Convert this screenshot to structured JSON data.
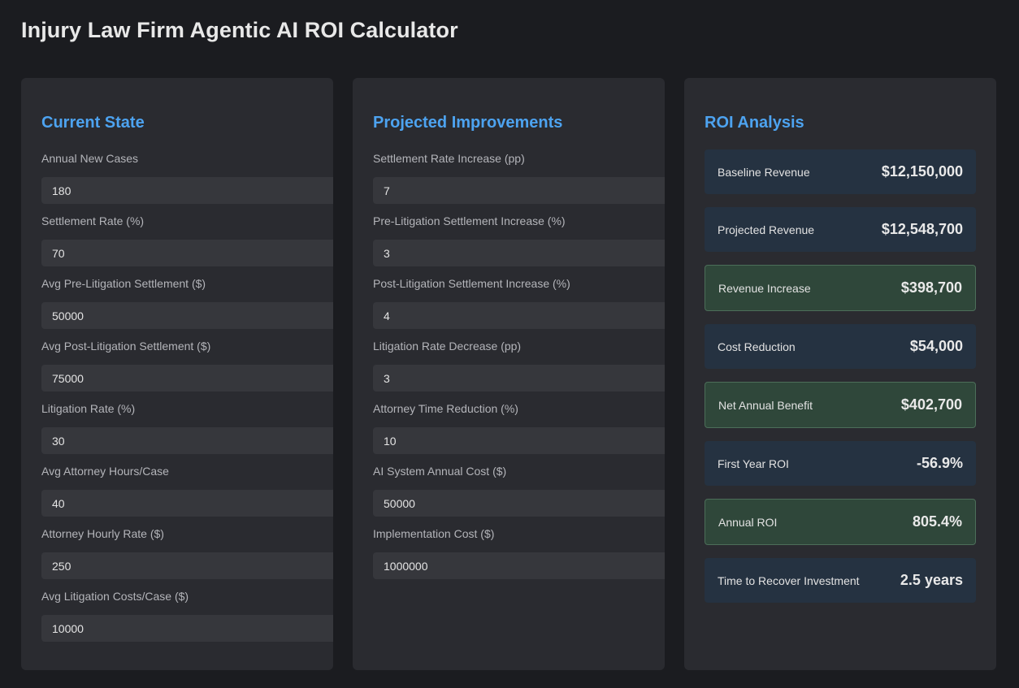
{
  "page": {
    "title": "Injury Law Firm Agentic AI ROI Calculator"
  },
  "current_state": {
    "heading": "Current State",
    "fields": [
      {
        "label": "Annual New Cases",
        "value": "180"
      },
      {
        "label": "Settlement Rate (%)",
        "value": "70"
      },
      {
        "label": "Avg Pre-Litigation Settlement ($)",
        "value": "50000"
      },
      {
        "label": "Avg Post-Litigation Settlement ($)",
        "value": "75000"
      },
      {
        "label": "Litigation Rate (%)",
        "value": "30"
      },
      {
        "label": "Avg Attorney Hours/Case",
        "value": "40"
      },
      {
        "label": "Attorney Hourly Rate ($)",
        "value": "250"
      },
      {
        "label": "Avg Litigation Costs/Case ($)",
        "value": "10000"
      }
    ]
  },
  "projected_improvements": {
    "heading": "Projected Improvements",
    "fields": [
      {
        "label": "Settlement Rate Increase (pp)",
        "value": "7"
      },
      {
        "label": "Pre-Litigation Settlement Increase (%)",
        "value": "3"
      },
      {
        "label": "Post-Litigation Settlement Increase (%)",
        "value": "4"
      },
      {
        "label": "Litigation Rate Decrease (pp)",
        "value": "3"
      },
      {
        "label": "Attorney Time Reduction (%)",
        "value": "10"
      },
      {
        "label": "AI System Annual Cost ($)",
        "value": "50000"
      },
      {
        "label": "Implementation Cost ($)",
        "value": "1000000"
      }
    ]
  },
  "roi_analysis": {
    "heading": "ROI Analysis",
    "cards": [
      {
        "label": "Baseline Revenue",
        "value": "$12,150,000",
        "positive": false
      },
      {
        "label": "Projected Revenue",
        "value": "$12,548,700",
        "positive": false
      },
      {
        "label": "Revenue Increase",
        "value": "$398,700",
        "positive": true
      },
      {
        "label": "Cost Reduction",
        "value": "$54,000",
        "positive": false
      },
      {
        "label": "Net Annual Benefit",
        "value": "$402,700",
        "positive": true
      },
      {
        "label": "First Year ROI",
        "value": "-56.9%",
        "positive": false
      },
      {
        "label": "Annual ROI",
        "value": "805.4%",
        "positive": true
      },
      {
        "label": "Time to Recover Investment",
        "value": "2.5 years",
        "positive": false
      }
    ]
  },
  "colors": {
    "background": "#1b1c20",
    "panel": "#2a2b30",
    "heading_accent": "#4da3f0",
    "card_neutral": "#253241",
    "card_positive": "#2f473a"
  }
}
